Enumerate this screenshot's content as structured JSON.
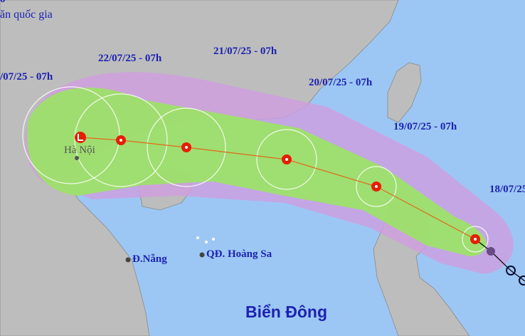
{
  "header": {
    "line1": "ô",
    "line2": "ăn quốc gia"
  },
  "forecast_times": [
    "/07/25 - 07h",
    "22/07/25 - 07h",
    "21/07/25 - 07h",
    "20/07/25 - 07h",
    "19/07/25 - 07h",
    "18/07/25"
  ],
  "places": {
    "hanoi": "Hà Nội",
    "danang": "Đ.Nẵng",
    "paracel": "QĐ. Hoàng Sa",
    "sea": "Biển Đông"
  },
  "colors": {
    "sea": "#9cc7f4",
    "land": "#bdbdbd",
    "risk_zone": "#cc99e0",
    "strong_wind_zone": "#99e066",
    "storm_icon": "#e61e00",
    "track_line": "#e06a1a"
  },
  "icons": [
    "storm-icon",
    "low-pressure-icon",
    "past-position-icon"
  ]
}
